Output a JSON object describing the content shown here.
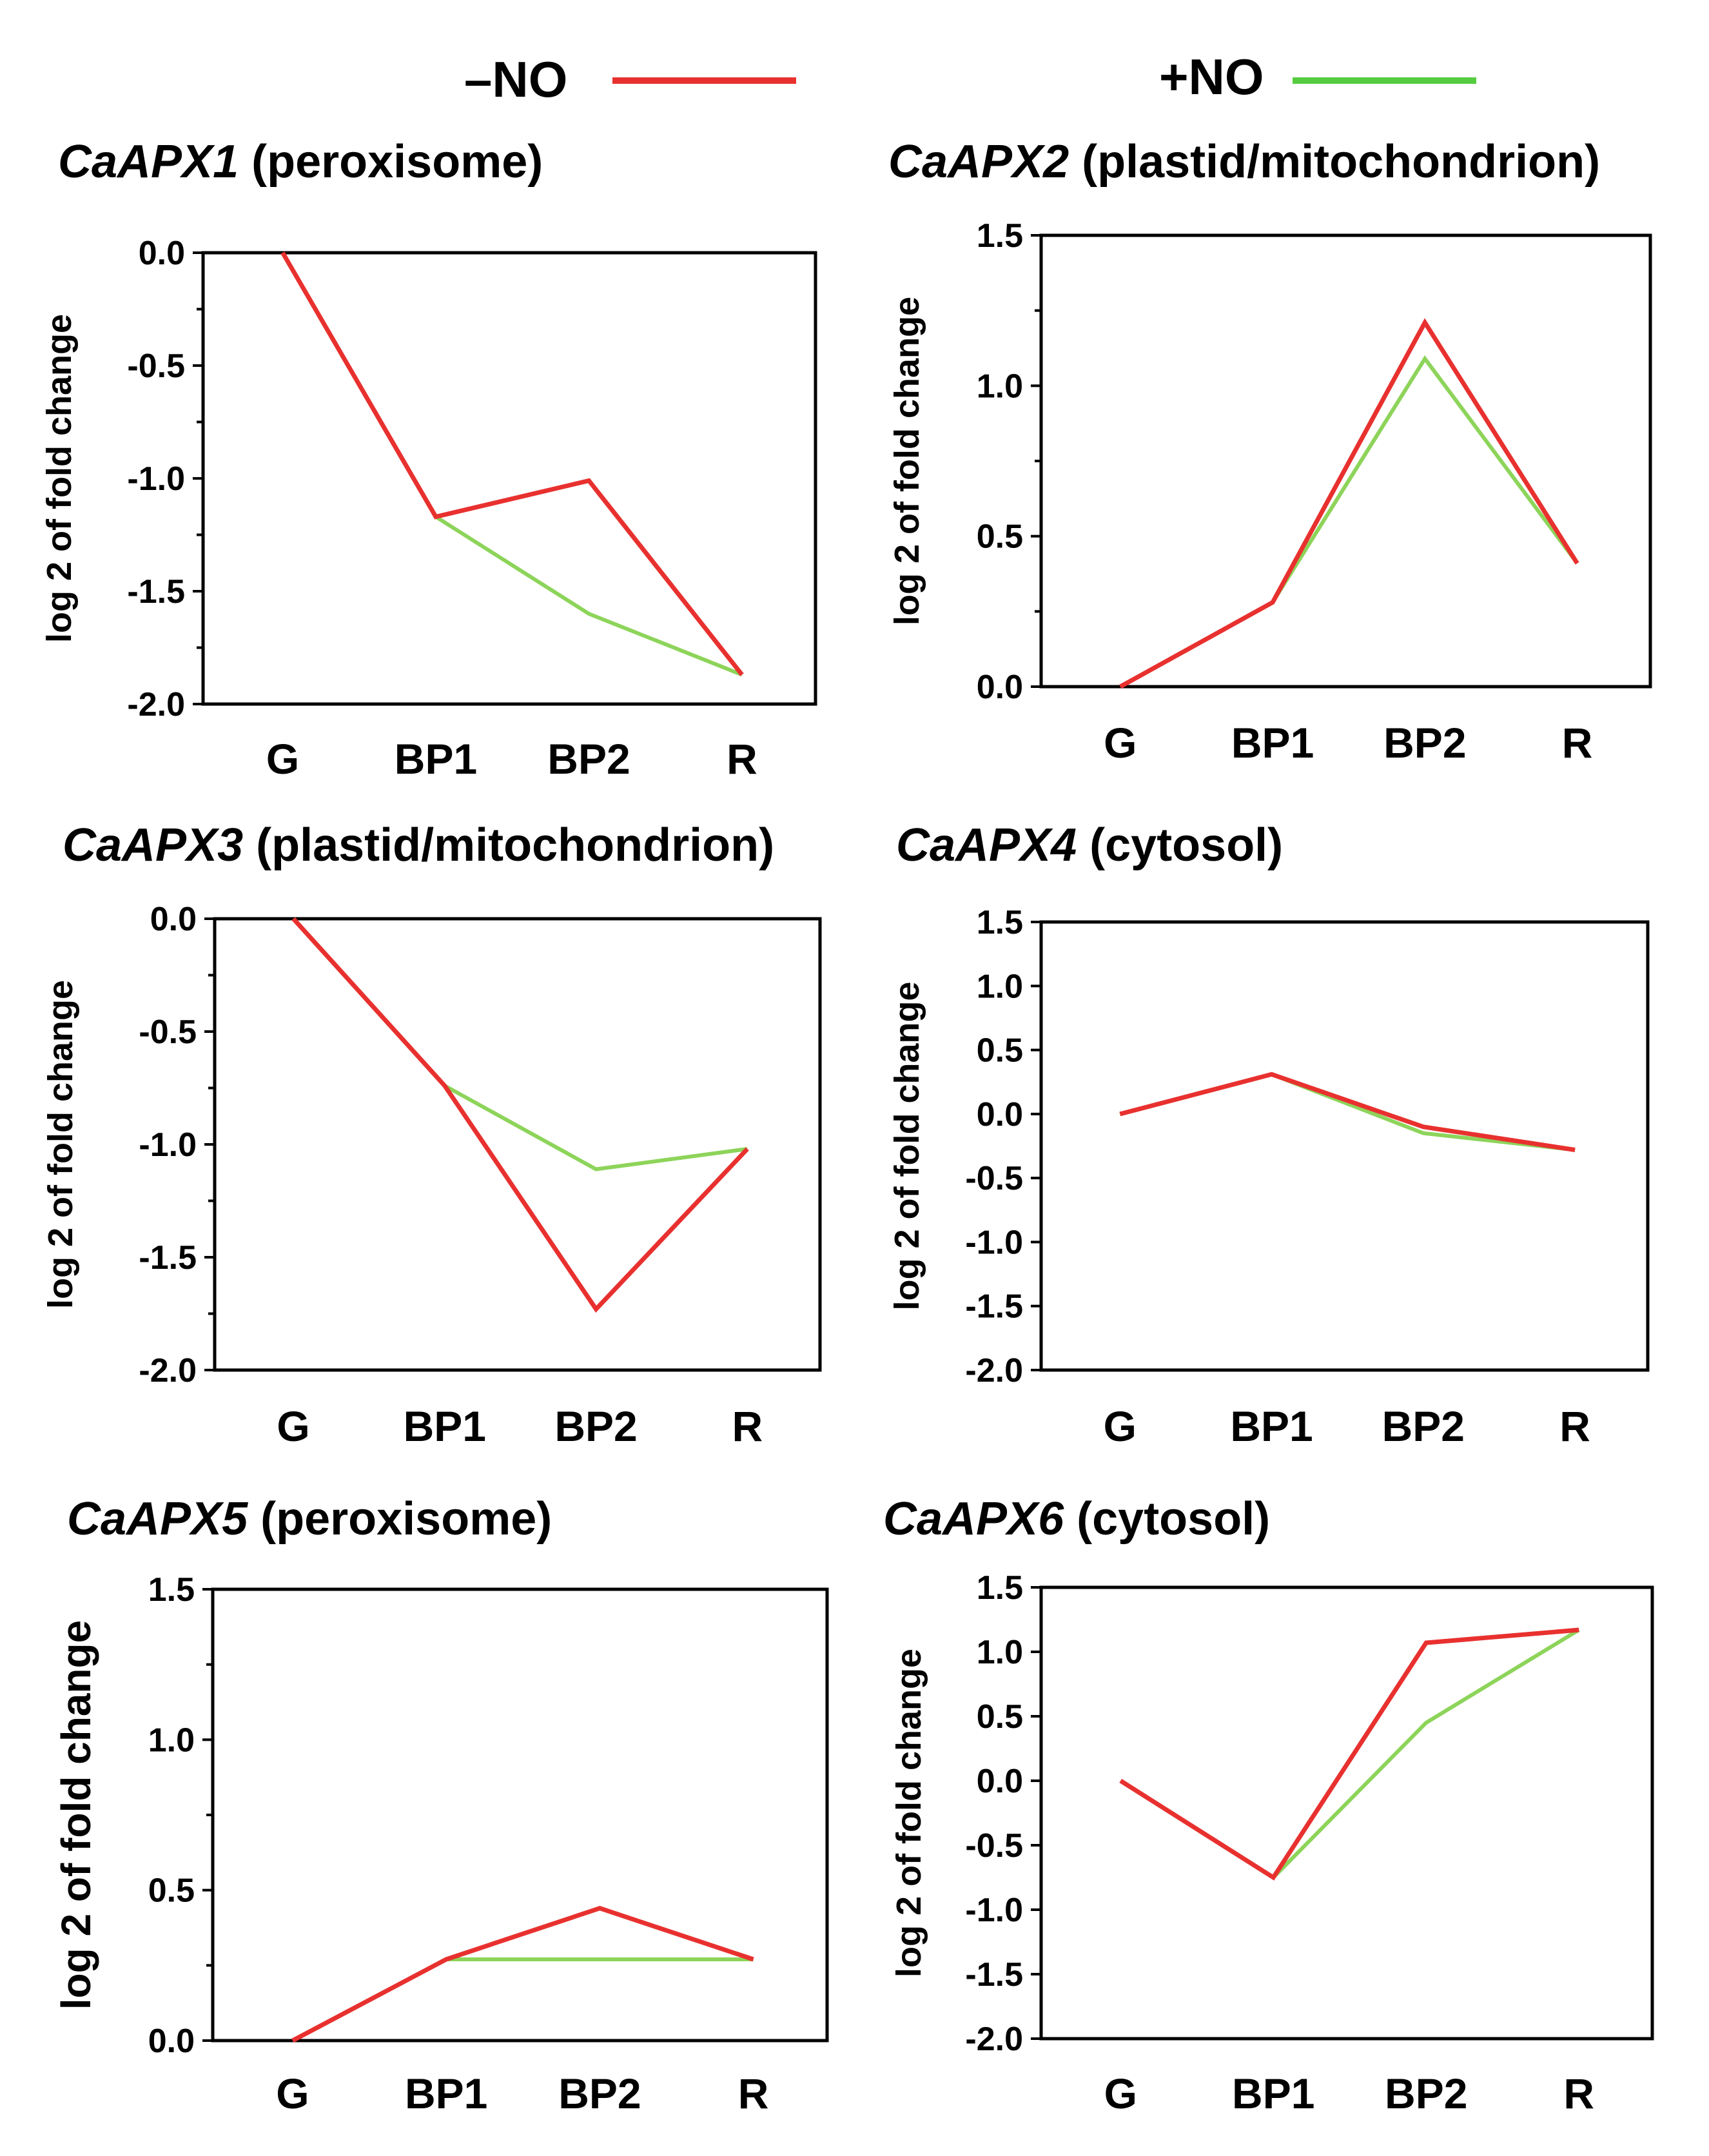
{
  "legend": {
    "items": [
      {
        "label": "–NO",
        "color": "#e8312f"
      },
      {
        "label": "+NO",
        "color": "#55cc40"
      }
    ]
  },
  "chart_data": [
    {
      "type": "line",
      "title_gene": "CaAPX1",
      "title_loc": "(peroxisome)",
      "ylabel": "log 2 of fold change",
      "categories": [
        "G",
        "BP1",
        "BP2",
        "R"
      ],
      "ylim": [
        -2.0,
        0.0
      ],
      "yticks": [
        "0.0",
        "-0.5",
        "-1.0",
        "-1.5",
        "-2.0"
      ],
      "series": [
        {
          "name": "–NO",
          "color": "#e8312f",
          "values": [
            0.0,
            -1.17,
            -1.01,
            -1.87
          ]
        },
        {
          "name": "+NO",
          "color": "#8dd45a",
          "values": [
            0.0,
            -1.17,
            -1.6,
            -1.87
          ]
        }
      ]
    },
    {
      "type": "line",
      "title_gene": "CaAPX2",
      "title_loc": "(plastid/mitochondrion)",
      "ylabel": "log 2 of fold change",
      "categories": [
        "G",
        "BP1",
        "BP2",
        "R"
      ],
      "ylim": [
        0.0,
        1.5
      ],
      "yticks": [
        "1.5",
        "1.0",
        "0.5",
        "0.0"
      ],
      "series": [
        {
          "name": "–NO",
          "color": "#e8312f",
          "values": [
            0.0,
            0.28,
            1.21,
            0.41
          ]
        },
        {
          "name": "+NO",
          "color": "#8dd45a",
          "values": [
            0.0,
            0.28,
            1.09,
            0.41
          ]
        }
      ]
    },
    {
      "type": "line",
      "title_gene": "CaAPX3",
      "title_loc": "(plastid/mitochondrion)",
      "ylabel": "log 2 of fold change",
      "categories": [
        "G",
        "BP1",
        "BP2",
        "R"
      ],
      "ylim": [
        -2.0,
        0.0
      ],
      "yticks": [
        "0.0",
        "-0.5",
        "-1.0",
        "-1.5",
        "-2.0"
      ],
      "series": [
        {
          "name": "–NO",
          "color": "#e8312f",
          "values": [
            0.0,
            -0.74,
            -1.73,
            -1.02
          ]
        },
        {
          "name": "+NO",
          "color": "#8dd45a",
          "values": [
            0.0,
            -0.74,
            -1.11,
            -1.02
          ]
        }
      ]
    },
    {
      "type": "line",
      "title_gene": "CaAPX4",
      "title_loc": "(cytosol)",
      "ylabel": "log 2 of fold change",
      "categories": [
        "G",
        "BP1",
        "BP2",
        "R"
      ],
      "ylim": [
        -2.0,
        1.5
      ],
      "yticks": [
        "1.5",
        "1.0",
        "0.5",
        "0.0",
        "-0.5",
        "-1.0",
        "-1.5",
        "-2.0"
      ],
      "series": [
        {
          "name": "–NO",
          "color": "#e8312f",
          "values": [
            0.0,
            0.31,
            -0.1,
            -0.28
          ]
        },
        {
          "name": "+NO",
          "color": "#8dd45a",
          "values": [
            0.0,
            0.31,
            -0.15,
            -0.28
          ]
        }
      ]
    },
    {
      "type": "line",
      "title_gene": "CaAPX5",
      "title_loc": "(peroxisome)",
      "ylabel": "log 2 of fold change",
      "categories": [
        "G",
        "BP1",
        "BP2",
        "R"
      ],
      "ylim": [
        0.0,
        1.5
      ],
      "yticks": [
        "1.5",
        "1.0",
        "0.5",
        "0.0"
      ],
      "series": [
        {
          "name": "–NO",
          "color": "#e8312f",
          "values": [
            0.0,
            0.27,
            0.44,
            0.27
          ]
        },
        {
          "name": "+NO",
          "color": "#8dd45a",
          "values": [
            0.0,
            0.27,
            0.27,
            0.27
          ]
        }
      ]
    },
    {
      "type": "line",
      "title_gene": "CaAPX6",
      "title_loc": "(cytosol)",
      "ylabel": "log 2 of fold change",
      "categories": [
        "G",
        "BP1",
        "BP2",
        "R"
      ],
      "ylim": [
        -2.0,
        1.5
      ],
      "yticks": [
        "1.5",
        "1.0",
        "0.5",
        "0.0",
        "-0.5",
        "-1.0",
        "-1.5",
        "-2.0"
      ],
      "series": [
        {
          "name": "–NO",
          "color": "#e8312f",
          "values": [
            0.0,
            -0.75,
            1.07,
            1.17
          ]
        },
        {
          "name": "+NO",
          "color": "#8dd45a",
          "values": [
            0.0,
            -0.75,
            0.45,
            1.17
          ]
        }
      ]
    }
  ]
}
